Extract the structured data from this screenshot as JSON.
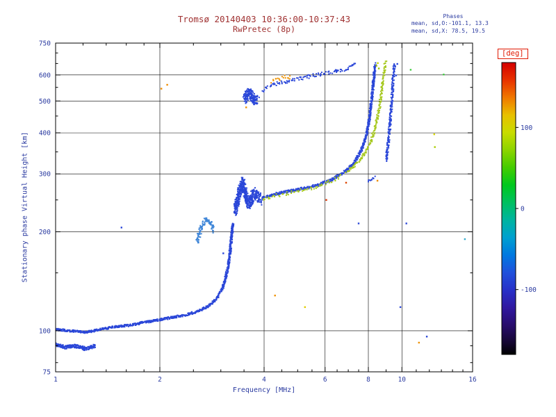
{
  "palette": {
    "title_color": "#a03232",
    "axis_text_color": "#2a3aa0",
    "deg_label_color": "#e01800",
    "frame_color": "#000000",
    "background": "#ffffff",
    "o_mode_blue": "#2a46d8",
    "x_mode_green": "#a6c81e"
  },
  "chart_data": {
    "type": "scatter",
    "title": "Tromsø 20140403 10:36:00-10:37:43",
    "subtitle": "RwPretec (8p)",
    "xlabel": "Frequency [MHz]",
    "ylabel": "Stationary phase Virtual Height [km]",
    "xscale": "log",
    "yscale": "log",
    "xlim": [
      1,
      16
    ],
    "ylim": [
      75,
      750
    ],
    "xticks": [
      1,
      2,
      4,
      6,
      8,
      10,
      16
    ],
    "yticks": [
      75,
      100,
      200,
      300,
      400,
      500,
      600,
      750
    ],
    "xticks_minor": [
      1.2,
      1.4,
      1.6,
      1.8,
      2.5,
      3,
      3.5,
      4.5,
      5,
      5.5,
      6.5,
      7,
      7.5,
      9,
      11,
      12,
      13,
      14,
      15
    ],
    "yticks_minor": [
      80,
      90,
      150,
      250,
      350,
      450,
      550,
      650,
      700
    ],
    "grid_x": [
      2,
      4,
      6,
      8,
      10
    ],
    "grid_y": [
      100,
      200,
      300,
      400,
      500,
      600
    ],
    "grid": true,
    "legend": "none",
    "stats": {
      "heading": "Phases",
      "line_o": "mean, sd,O:-101.1, 13.3",
      "line_x": "mean, sd,X:  78.5, 19.5"
    },
    "colorbar": {
      "label": "[deg]",
      "ticks": [
        100,
        0,
        -100
      ],
      "range": [
        -180,
        180
      ],
      "position": "right",
      "stops": [
        {
          "p": 0.0,
          "c": "#d40000"
        },
        {
          "p": 0.06,
          "c": "#e83200"
        },
        {
          "p": 0.12,
          "c": "#f07800"
        },
        {
          "p": 0.18,
          "c": "#e8c000"
        },
        {
          "p": 0.24,
          "c": "#c8dc00"
        },
        {
          "p": 0.3,
          "c": "#8cd400"
        },
        {
          "p": 0.36,
          "c": "#44cc00"
        },
        {
          "p": 0.42,
          "c": "#00c81e"
        },
        {
          "p": 0.48,
          "c": "#00c060"
        },
        {
          "p": 0.54,
          "c": "#00b4a0"
        },
        {
          "p": 0.6,
          "c": "#00a0d0"
        },
        {
          "p": 0.66,
          "c": "#0078e0"
        },
        {
          "p": 0.72,
          "c": "#2050dc"
        },
        {
          "p": 0.78,
          "c": "#2830c8"
        },
        {
          "p": 0.84,
          "c": "#3018a0"
        },
        {
          "p": 0.9,
          "c": "#280c6c"
        },
        {
          "p": 0.96,
          "c": "#140630"
        },
        {
          "p": 1.0,
          "c": "#000000"
        }
      ]
    },
    "series": [
      {
        "name": "e-region-trace",
        "color": "#2a46d8",
        "size": 2,
        "jitter": 1.6,
        "jx": 1.5,
        "density": 2.2,
        "points": [
          [
            1.0,
            101
          ],
          [
            1.1,
            100
          ],
          [
            1.22,
            99
          ],
          [
            1.35,
            101
          ],
          [
            1.5,
            103
          ],
          [
            1.65,
            104
          ],
          [
            1.8,
            106
          ],
          [
            2.0,
            108
          ],
          [
            2.2,
            110
          ],
          [
            2.4,
            112
          ],
          [
            2.6,
            115
          ],
          [
            2.8,
            120
          ],
          [
            2.95,
            127
          ],
          [
            3.05,
            137
          ],
          [
            3.12,
            150
          ],
          [
            3.18,
            168
          ],
          [
            3.22,
            192
          ],
          [
            3.25,
            213
          ]
        ]
      },
      {
        "name": "e-region-low-cluster",
        "color": "#2a46d8",
        "size": 2,
        "jitter": 2.5,
        "jx": 2,
        "density": 3.5,
        "points": [
          [
            1.0,
            91
          ],
          [
            1.06,
            89
          ],
          [
            1.14,
            90
          ],
          [
            1.22,
            88
          ],
          [
            1.3,
            90
          ]
        ]
      },
      {
        "name": "cusp-cluster",
        "color": "#2a46d8",
        "size": 2,
        "jitter": 9,
        "jx": 2,
        "density": 5,
        "points": [
          [
            3.3,
            232
          ],
          [
            3.36,
            252
          ],
          [
            3.42,
            272
          ],
          [
            3.47,
            282
          ],
          [
            3.52,
            268
          ],
          [
            3.58,
            248
          ],
          [
            3.64,
            243
          ],
          [
            3.7,
            257
          ],
          [
            3.76,
            262
          ],
          [
            3.84,
            254
          ],
          [
            3.92,
            251
          ]
        ]
      },
      {
        "name": "mid-cyan-patch",
        "color": "#3f86d8",
        "size": 2,
        "jitter": 4,
        "jx": 2,
        "density": 1.8,
        "points": [
          [
            2.56,
            186
          ],
          [
            2.62,
            203
          ],
          [
            2.68,
            214
          ],
          [
            2.74,
            219
          ],
          [
            2.8,
            212
          ],
          [
            2.86,
            201
          ]
        ]
      },
      {
        "name": "f-region-o-trace",
        "color": "#2a46d8",
        "size": 2,
        "jitter": 1.8,
        "jx": 1.5,
        "density": 2.2,
        "points": [
          [
            3.95,
            253
          ],
          [
            4.2,
            259
          ],
          [
            4.5,
            263
          ],
          [
            4.8,
            267
          ],
          [
            5.1,
            270
          ],
          [
            5.4,
            273
          ],
          [
            5.7,
            277
          ],
          [
            6.0,
            283
          ],
          [
            6.3,
            289
          ],
          [
            6.6,
            297
          ],
          [
            6.9,
            307
          ],
          [
            7.2,
            320
          ],
          [
            7.45,
            338
          ],
          [
            7.7,
            362
          ],
          [
            7.9,
            396
          ],
          [
            8.05,
            442
          ],
          [
            8.15,
            492
          ],
          [
            8.25,
            552
          ],
          [
            8.32,
            606
          ],
          [
            8.38,
            648
          ]
        ]
      },
      {
        "name": "f-region-x-speckle",
        "color": "#a6c81e",
        "size": 2,
        "jitter": 2.6,
        "jx": 2,
        "density": 0.55,
        "points": [
          [
            3.95,
            250
          ],
          [
            4.3,
            257
          ],
          [
            4.7,
            262
          ],
          [
            5.1,
            267
          ],
          [
            5.5,
            272
          ],
          [
            5.9,
            278
          ],
          [
            6.3,
            286
          ],
          [
            6.7,
            296
          ]
        ]
      },
      {
        "name": "f-region-x-trace",
        "color": "#a6c81e",
        "size": 2,
        "jitter": 2,
        "jx": 1.6,
        "density": 1.1,
        "points": [
          [
            6.9,
            303
          ],
          [
            7.2,
            313
          ],
          [
            7.5,
            326
          ],
          [
            7.8,
            344
          ],
          [
            8.1,
            372
          ],
          [
            8.35,
            410
          ],
          [
            8.55,
            458
          ],
          [
            8.7,
            516
          ],
          [
            8.8,
            570
          ],
          [
            8.9,
            622
          ],
          [
            8.97,
            658
          ]
        ]
      },
      {
        "name": "x-flat-tail",
        "color": "#2a46d8",
        "size": 2,
        "jitter": 2,
        "jx": 1.5,
        "density": 0.9,
        "points": [
          [
            7.95,
            284
          ],
          [
            8.15,
            288
          ],
          [
            8.35,
            293
          ]
        ]
      },
      {
        "name": "right-branch",
        "color": "#2a46d8",
        "size": 2,
        "jitter": 2,
        "jx": 1.6,
        "density": 1.4,
        "points": [
          [
            9.0,
            330
          ],
          [
            9.12,
            368
          ],
          [
            9.22,
            415
          ],
          [
            9.3,
            468
          ],
          [
            9.37,
            522
          ],
          [
            9.43,
            575
          ],
          [
            9.49,
            625
          ],
          [
            9.54,
            650
          ]
        ]
      },
      {
        "name": "second-hop-blob",
        "color": "#2a46d8",
        "size": 2,
        "jitter": 7,
        "jx": 3,
        "density": 5,
        "points": [
          [
            3.52,
            502
          ],
          [
            3.58,
            519
          ],
          [
            3.64,
            531
          ],
          [
            3.7,
            512
          ],
          [
            3.76,
            498
          ],
          [
            3.82,
            508
          ]
        ]
      },
      {
        "name": "second-hop-trace",
        "color": "#2a46d8",
        "size": 2,
        "jitter": 2.6,
        "jx": 2,
        "density": 0.75,
        "points": [
          [
            3.95,
            535
          ],
          [
            4.15,
            552
          ],
          [
            4.4,
            566
          ],
          [
            4.7,
            576
          ],
          [
            5.0,
            585
          ],
          [
            5.3,
            592
          ],
          [
            5.6,
            598
          ],
          [
            5.95,
            605
          ],
          [
            6.3,
            612
          ],
          [
            6.65,
            620
          ],
          [
            7.0,
            630
          ],
          [
            7.2,
            639
          ],
          [
            7.35,
            649
          ]
        ]
      },
      {
        "name": "second-hop-orange",
        "color": "#ee9200",
        "size": 2,
        "jitter": 3.5,
        "jx": 2,
        "density": 0.5,
        "points": [
          [
            4.2,
            572
          ],
          [
            4.4,
            585
          ],
          [
            4.6,
            594
          ],
          [
            4.8,
            588
          ]
        ]
      }
    ],
    "stray_points": [
      [
        2.02,
        545,
        "#ee8c00"
      ],
      [
        2.1,
        560,
        "#ee8c00"
      ],
      [
        3.55,
        478,
        "#ee9200"
      ],
      [
        4.3,
        128,
        "#ee9200"
      ],
      [
        5.25,
        118,
        "#e0cc00"
      ],
      [
        6.05,
        250,
        "#dd3300"
      ],
      [
        6.9,
        282,
        "#dd4400"
      ],
      [
        7.5,
        212,
        "#2a46d8"
      ],
      [
        8.5,
        286,
        "#ee8c00"
      ],
      [
        8.45,
        640,
        "#b4cc00"
      ],
      [
        8.52,
        652,
        "#c8d800"
      ],
      [
        8.58,
        628,
        "#9cc800"
      ],
      [
        9.9,
        118,
        "#2a46d8"
      ],
      [
        10.3,
        212,
        "#2a46d8"
      ],
      [
        10.6,
        622,
        "#44cc44"
      ],
      [
        11.2,
        92,
        "#ee9200"
      ],
      [
        11.8,
        96,
        "#2a46d8"
      ],
      [
        12.4,
        396,
        "#d8d800"
      ],
      [
        12.45,
        362,
        "#aacc00"
      ],
      [
        13.2,
        602,
        "#44cc44"
      ],
      [
        15.2,
        190,
        "#33aacc"
      ],
      [
        1.55,
        206,
        "#2a46d8"
      ],
      [
        3.05,
        172,
        "#2a46d8"
      ],
      [
        9.7,
        648,
        "#2a46d8"
      ],
      [
        9.62,
        598,
        "#2a46d8"
      ]
    ]
  }
}
